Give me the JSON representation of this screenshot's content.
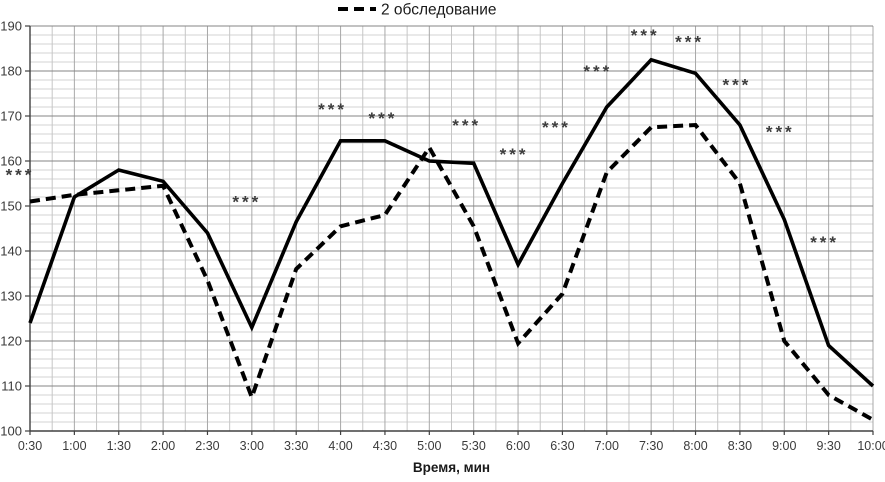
{
  "legend": {
    "label": "2 обследование",
    "marker": "dashed-line",
    "position": "top-center"
  },
  "chart_data": {
    "type": "line",
    "title": "",
    "xlabel": "Время, мин",
    "ylabel": "",
    "ylim": [
      100,
      190
    ],
    "y_major_step": 10,
    "y_minor_step": 2,
    "grid": "on",
    "y_ticks": [
      100,
      110,
      120,
      130,
      140,
      150,
      160,
      170,
      180,
      190
    ],
    "categories": [
      "0:30",
      "1:00",
      "1:30",
      "2:00",
      "2:30",
      "3:00",
      "3:30",
      "4:00",
      "4:30",
      "5:00",
      "5:30",
      "6:00",
      "6:30",
      "7:00",
      "7:30",
      "8:00",
      "8:30",
      "9:00",
      "9:30",
      "10:00"
    ],
    "series": [
      {
        "name": "",
        "style": "solid",
        "color": "#000000",
        "values": [
          124,
          152,
          158,
          155.5,
          144,
          123,
          146.5,
          164.5,
          164.5,
          160,
          159.5,
          137,
          155,
          172,
          182.5,
          179.5,
          168,
          147,
          119,
          110
        ]
      },
      {
        "name": "2 обследование",
        "style": "dashed",
        "color": "#000000",
        "values": [
          151,
          152.5,
          153.5,
          154.5,
          133.5,
          107.5,
          136,
          145.5,
          148,
          163,
          145.5,
          119.5,
          130.5,
          157.5,
          167.5,
          168,
          155,
          120,
          108,
          102.5
        ]
      }
    ],
    "annotations": [
      {
        "label": "***",
        "x": "0:30",
        "dx": -10,
        "y": 157.5
      },
      {
        "label": "***",
        "x": "3:00",
        "dx": -5,
        "y": 151.5
      },
      {
        "label": "***",
        "x": "4:00",
        "dx": -8,
        "y": 172
      },
      {
        "label": "***",
        "x": "4:30",
        "dx": -2,
        "y": 170
      },
      {
        "label": "***",
        "x": "5:30",
        "dx": -7,
        "y": 168.5
      },
      {
        "label": "***",
        "x": "6:00",
        "dx": -4,
        "y": 162
      },
      {
        "label": "***",
        "x": "6:30",
        "dx": -6,
        "y": 168
      },
      {
        "label": "***",
        "x": "7:00",
        "dx": -9,
        "y": 180.5
      },
      {
        "label": "***",
        "x": "7:30",
        "dx": -6,
        "y": 188.5
      },
      {
        "label": "***",
        "x": "8:00",
        "dx": -6,
        "y": 187
      },
      {
        "label": "***",
        "x": "8:30",
        "dx": -3,
        "y": 177.5
      },
      {
        "label": "***",
        "x": "9:00",
        "dx": -4,
        "y": 167
      },
      {
        "label": "***",
        "x": "9:30",
        "dx": -4,
        "y": 142.5
      }
    ]
  },
  "colors": {
    "series": "#000000",
    "grid_major": "#858585",
    "grid_minor": "#d3d3d3",
    "grid_vert_major": "#a8a8a8",
    "grid_vert_minor": "#c6c6c6",
    "axis": "#404040",
    "tick_label": "#3b3b3b",
    "annotation": "#3d3d3d",
    "legend_text": "#1a1a1a"
  }
}
